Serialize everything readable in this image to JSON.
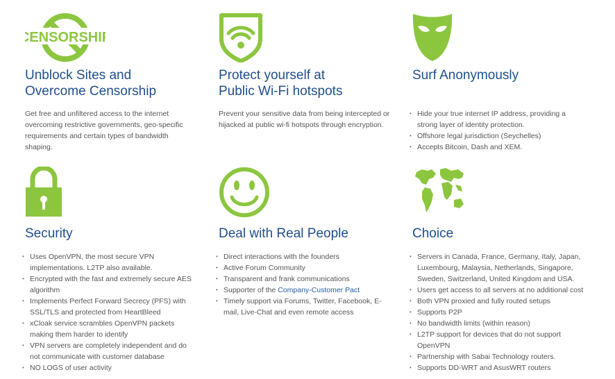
{
  "features": [
    {
      "icon": "censorship-icon",
      "icon_text": "CENSORSHIP",
      "title_line1": "Unblock Sites and",
      "title_line2": "Overcome Censorship",
      "description": "Get free and unfiltered access to the internet overcoming restrictive governments, geo-specific requirements and certain types of bandwidth shaping."
    },
    {
      "icon": "wifi-shield-icon",
      "title_line1": "Protect yourself at",
      "title_line2": "Public Wi-Fi hotspots",
      "description": "Prevent your sensitive data from being intercepted or hijacked at public wi-fi hotspots through encryption."
    },
    {
      "icon": "mask-icon",
      "title_line1": "Surf Anonymously",
      "bullets": [
        "Hide your true internet IP address, providing a strong layer of identity protection.",
        "Offshore legal jurisdiction (Seychelles)",
        "Accepts Bitcoin, Dash and XEM."
      ]
    },
    {
      "icon": "padlock-icon",
      "title_line1": "Security",
      "bullets": [
        "Uses OpenVPN, the most secure VPN implementations. L2TP also available.",
        "Encrypted with the fast and extremely secure AES algorithm",
        "Implements Perfect Forward Secrecy (PFS) with SSL/TLS and protected from HeartBleed",
        "xCloak service scrambles OpenVPN packets making them harder to identify",
        "VPN servers are completely independent and do not communicate with customer database",
        "NO LOGS of user activity"
      ]
    },
    {
      "icon": "smiley-icon",
      "title_line1": "Deal with Real People",
      "bullets": [
        "Direct interactions with the founders",
        "Active Forum Community",
        "Transparent and frank communications",
        "Timely support via Forums, Twitter, Facebook, E-mail, Live-Chat and even remote access"
      ],
      "pact_prefix": "Supporter of the ",
      "pact_link": "Company-Customer Pact"
    },
    {
      "icon": "globe-icon",
      "title_line1": "Choice",
      "bullets": [
        "Servers in Canada, France, Germany, Italy, Japan, Luxembourg, Malaysia, Netherlands, Singapore, Sweden, Switzerland, United Kingdom and USA.",
        "Users get access to all servers at no additional cost",
        "Both VPN proxied and fully routed setups",
        "Supports P2P",
        "No bandwidth limits (within reason)",
        "L2TP support for devices that do not support OpenVPN",
        "Partnership with Sabai Technology routers.",
        "Supports DD-WRT and AsusWRT routers"
      ]
    }
  ],
  "colors": {
    "green": "#8cc63f",
    "title_blue": "#1f4e8c",
    "link_blue": "#1f5ea8",
    "body_gray": "#555555"
  }
}
